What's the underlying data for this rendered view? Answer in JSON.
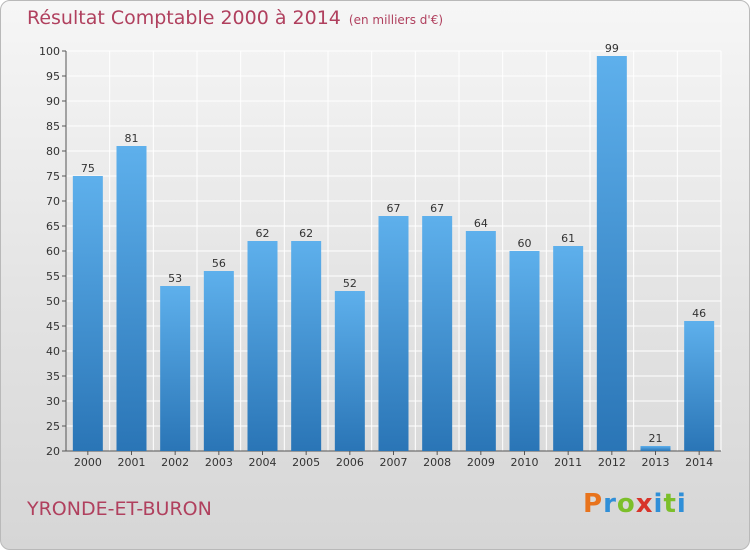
{
  "header": {
    "title": "Résultat Comptable 2000 à 2014",
    "subtitle": "(en milliers d'€)"
  },
  "footer": {
    "commune": "YRONDE-ET-BURON",
    "logo_text": "Proxiti"
  },
  "colors": {
    "title": "#b0405e",
    "bar_top": "#5eb0ec",
    "bar_bottom": "#2a75b6",
    "grid": "#ffffff",
    "logo_letters": [
      "#e8731c",
      "#2f8fd8",
      "#7cbf2a",
      "#d8342a",
      "#2f8fd8",
      "#7cbf2a",
      "#2f8fd8"
    ]
  },
  "chart_data": {
    "type": "bar",
    "categories": [
      "2000",
      "2001",
      "2002",
      "2003",
      "2004",
      "2005",
      "2006",
      "2007",
      "2008",
      "2009",
      "2010",
      "2011",
      "2012",
      "2013",
      "2014"
    ],
    "values": [
      75,
      81,
      53,
      56,
      62,
      62,
      52,
      67,
      67,
      64,
      60,
      61,
      99,
      21,
      46
    ],
    "title": "Résultat Comptable 2000 à 2014",
    "subtitle": "(en milliers d'€)",
    "ylim": [
      20,
      100
    ],
    "yticks": [
      20,
      25,
      30,
      35,
      40,
      45,
      50,
      55,
      60,
      65,
      70,
      75,
      80,
      85,
      90,
      95,
      100
    ],
    "grid": true,
    "legend": "none",
    "data_labels": true
  }
}
